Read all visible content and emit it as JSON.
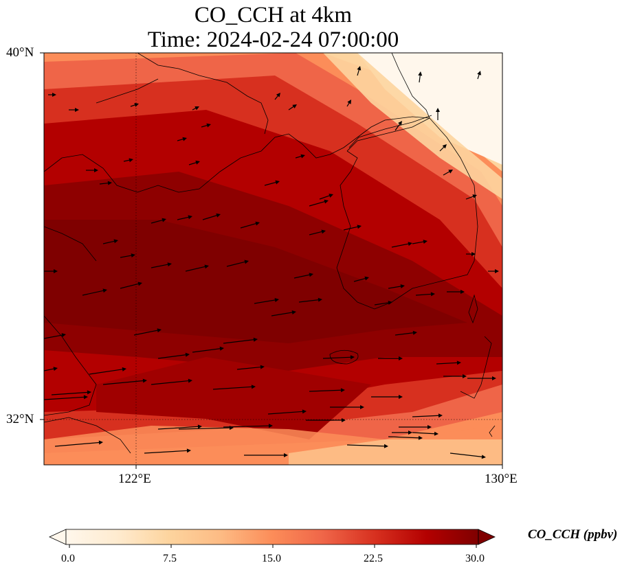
{
  "title": {
    "line1": "CO_CCH at 4km",
    "line2": "Time: 2024-02-24 07:00:00"
  },
  "map": {
    "lon_range": [
      120.4,
      130.0
    ],
    "lat_range": [
      31.0,
      40.0
    ],
    "lat_ticks": [
      {
        "value": 40,
        "label": "40°N"
      },
      {
        "value": 32,
        "label": "32°N"
      }
    ],
    "lon_ticks": [
      {
        "value": 122,
        "label": "122°E"
      },
      {
        "value": 130,
        "label": "130°E"
      }
    ],
    "gridlines": "dotted",
    "wind_vectors": true,
    "coastlines": true
  },
  "colorbar": {
    "label": "CO_CCH (ppbv)",
    "min": 0.0,
    "max": 30.0,
    "extend": "both",
    "colormap": "OrRd",
    "ticks": [
      "0.0",
      "7.5",
      "15.0",
      "22.5",
      "30.0"
    ]
  }
}
